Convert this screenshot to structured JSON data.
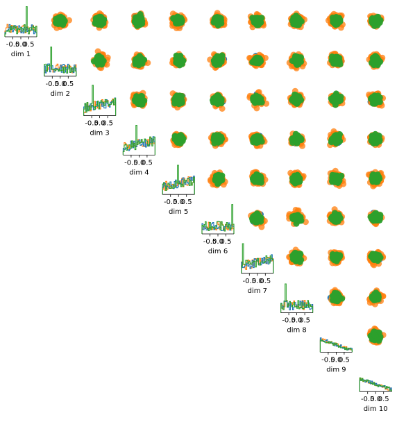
{
  "chart_data": {
    "type": "pairplot",
    "dims": [
      "dim 1",
      "dim 2",
      "dim 3",
      "dim 4",
      "dim 5",
      "dim 6",
      "dim 7",
      "dim 8",
      "dim 9",
      "dim 10"
    ],
    "layout": "upper-triangular",
    "diagonal": "histogram",
    "off_diagonal": "scatter",
    "xlim": [
      -1,
      1
    ],
    "ylim": [
      -1,
      1
    ],
    "diagonal_xticks": [
      -0.5,
      0.0,
      0.5
    ],
    "diagonal_xtick_labels": [
      "-0.5",
      "0.0",
      "0.5"
    ],
    "grid": false,
    "legend": "none",
    "series": [
      {
        "color": "#1f77b4"
      },
      {
        "color": "#ff7f0e"
      },
      {
        "color": "#2ca02c"
      }
    ]
  }
}
